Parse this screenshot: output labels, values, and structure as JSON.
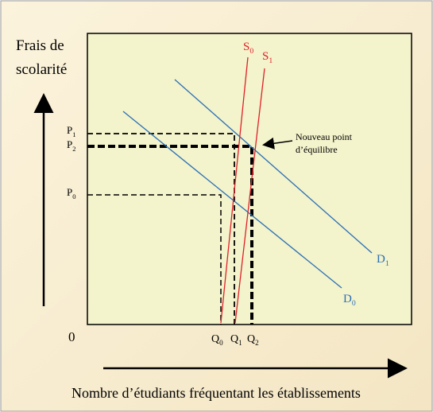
{
  "y_axis_label": [
    "Frais de",
    "scolarité"
  ],
  "x_axis_label": "Nombre d’étudiants fréquentant les établissements",
  "origin": "0",
  "price_labels": [
    {
      "text": "P",
      "sub": "1"
    },
    {
      "text": "P",
      "sub": "2"
    },
    {
      "text": "P",
      "sub": "0"
    }
  ],
  "quantity_labels": [
    {
      "text": "Q",
      "sub": "0"
    },
    {
      "text": "Q",
      "sub": "1"
    },
    {
      "text": "Q",
      "sub": "2"
    }
  ],
  "curve_labels": [
    {
      "text": "S",
      "sub": "0"
    },
    {
      "text": "S",
      "sub": "1"
    },
    {
      "text": "D",
      "sub": "1"
    },
    {
      "text": "D",
      "sub": "0"
    }
  ],
  "annotation": [
    "Nouveau point",
    "d’équilibre"
  ]
}
